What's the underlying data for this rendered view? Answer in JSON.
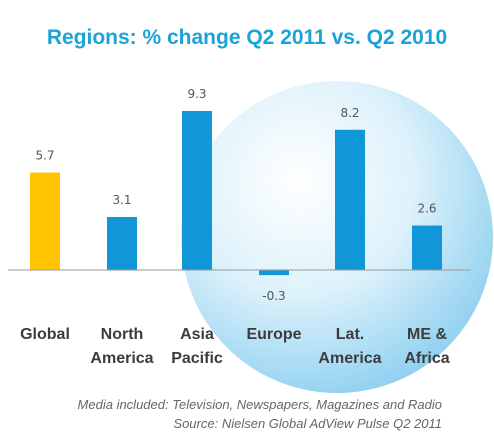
{
  "chart_data": {
    "type": "bar",
    "title": "Regions: % change Q2 2011 vs. Q2 2010",
    "categories": [
      [
        "Global"
      ],
      [
        "North",
        "America"
      ],
      [
        "Asia",
        "Pacific"
      ],
      [
        "Europe"
      ],
      [
        "Lat.",
        "America"
      ],
      [
        "ME &",
        "Africa"
      ]
    ],
    "values": [
      5.7,
      3.1,
      9.3,
      -0.3,
      8.2,
      2.6
    ],
    "value_labels": [
      "5.7",
      "3.1",
      "9.3",
      "-0.3",
      "8.2",
      "2.6"
    ],
    "ylim": [
      -0.5,
      9.3
    ],
    "grid": false,
    "legend": "none",
    "colors": {
      "highlight": "#ffc400",
      "bars": "#1196d8",
      "title": "#1aa3d6",
      "bubble": "#8fd0f0"
    },
    "highlight_index": 0,
    "notes": [
      "Media included: Television, Newspapers, Magazines and Radio",
      "Source: Nielsen Global AdView Pulse Q2 2011"
    ]
  }
}
